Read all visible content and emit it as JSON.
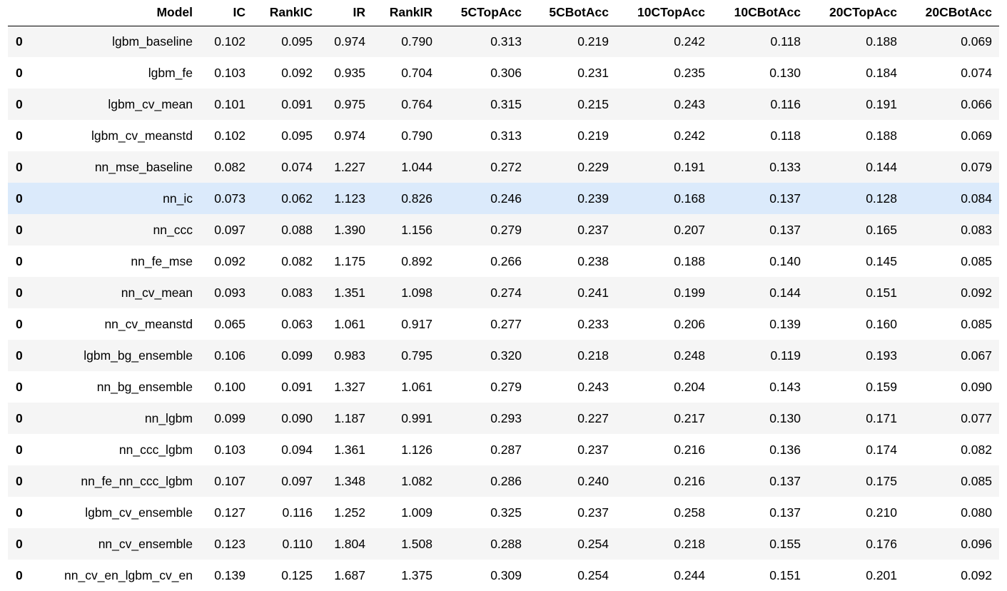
{
  "table": {
    "columns": [
      "",
      "Model",
      "IC",
      "RankIC",
      "IR",
      "RankIR",
      "5CTopAcc",
      "5CBotAcc",
      "10CTopAcc",
      "10CBotAcc",
      "20CTopAcc",
      "20CBotAcc"
    ],
    "highlighted_row": 5,
    "rows": [
      {
        "index": "0",
        "cells": [
          "lgbm_baseline",
          "0.102",
          "0.095",
          "0.974",
          "0.790",
          "0.313",
          "0.219",
          "0.242",
          "0.118",
          "0.188",
          "0.069"
        ]
      },
      {
        "index": "0",
        "cells": [
          "lgbm_fe",
          "0.103",
          "0.092",
          "0.935",
          "0.704",
          "0.306",
          "0.231",
          "0.235",
          "0.130",
          "0.184",
          "0.074"
        ]
      },
      {
        "index": "0",
        "cells": [
          "lgbm_cv_mean",
          "0.101",
          "0.091",
          "0.975",
          "0.764",
          "0.315",
          "0.215",
          "0.243",
          "0.116",
          "0.191",
          "0.066"
        ]
      },
      {
        "index": "0",
        "cells": [
          "lgbm_cv_meanstd",
          "0.102",
          "0.095",
          "0.974",
          "0.790",
          "0.313",
          "0.219",
          "0.242",
          "0.118",
          "0.188",
          "0.069"
        ]
      },
      {
        "index": "0",
        "cells": [
          "nn_mse_baseline",
          "0.082",
          "0.074",
          "1.227",
          "1.044",
          "0.272",
          "0.229",
          "0.191",
          "0.133",
          "0.144",
          "0.079"
        ]
      },
      {
        "index": "0",
        "cells": [
          "nn_ic",
          "0.073",
          "0.062",
          "1.123",
          "0.826",
          "0.246",
          "0.239",
          "0.168",
          "0.137",
          "0.128",
          "0.084"
        ]
      },
      {
        "index": "0",
        "cells": [
          "nn_ccc",
          "0.097",
          "0.088",
          "1.390",
          "1.156",
          "0.279",
          "0.237",
          "0.207",
          "0.137",
          "0.165",
          "0.083"
        ]
      },
      {
        "index": "0",
        "cells": [
          "nn_fe_mse",
          "0.092",
          "0.082",
          "1.175",
          "0.892",
          "0.266",
          "0.238",
          "0.188",
          "0.140",
          "0.145",
          "0.085"
        ]
      },
      {
        "index": "0",
        "cells": [
          "nn_cv_mean",
          "0.093",
          "0.083",
          "1.351",
          "1.098",
          "0.274",
          "0.241",
          "0.199",
          "0.144",
          "0.151",
          "0.092"
        ]
      },
      {
        "index": "0",
        "cells": [
          "nn_cv_meanstd",
          "0.065",
          "0.063",
          "1.061",
          "0.917",
          "0.277",
          "0.233",
          "0.206",
          "0.139",
          "0.160",
          "0.085"
        ]
      },
      {
        "index": "0",
        "cells": [
          "lgbm_bg_ensemble",
          "0.106",
          "0.099",
          "0.983",
          "0.795",
          "0.320",
          "0.218",
          "0.248",
          "0.119",
          "0.193",
          "0.067"
        ]
      },
      {
        "index": "0",
        "cells": [
          "nn_bg_ensemble",
          "0.100",
          "0.091",
          "1.327",
          "1.061",
          "0.279",
          "0.243",
          "0.204",
          "0.143",
          "0.159",
          "0.090"
        ]
      },
      {
        "index": "0",
        "cells": [
          "nn_lgbm",
          "0.099",
          "0.090",
          "1.187",
          "0.991",
          "0.293",
          "0.227",
          "0.217",
          "0.130",
          "0.171",
          "0.077"
        ]
      },
      {
        "index": "0",
        "cells": [
          "nn_ccc_lgbm",
          "0.103",
          "0.094",
          "1.361",
          "1.126",
          "0.287",
          "0.237",
          "0.216",
          "0.136",
          "0.174",
          "0.082"
        ]
      },
      {
        "index": "0",
        "cells": [
          "nn_fe_nn_ccc_lgbm",
          "0.107",
          "0.097",
          "1.348",
          "1.082",
          "0.286",
          "0.240",
          "0.216",
          "0.137",
          "0.175",
          "0.085"
        ]
      },
      {
        "index": "0",
        "cells": [
          "lgbm_cv_ensemble",
          "0.127",
          "0.116",
          "1.252",
          "1.009",
          "0.325",
          "0.237",
          "0.258",
          "0.137",
          "0.210",
          "0.080"
        ]
      },
      {
        "index": "0",
        "cells": [
          "nn_cv_ensemble",
          "0.123",
          "0.110",
          "1.804",
          "1.508",
          "0.288",
          "0.254",
          "0.218",
          "0.155",
          "0.176",
          "0.096"
        ]
      },
      {
        "index": "0",
        "cells": [
          "nn_cv_en_lgbm_cv_en",
          "0.139",
          "0.125",
          "1.687",
          "1.375",
          "0.309",
          "0.254",
          "0.244",
          "0.151",
          "0.201",
          "0.092"
        ]
      }
    ]
  }
}
